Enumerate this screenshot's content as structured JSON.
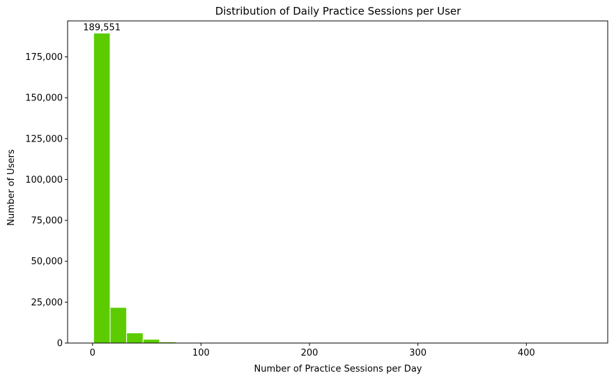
{
  "chart_data": {
    "type": "bar",
    "title": "Distribution of Daily Practice Sessions per User",
    "xlabel": "Number of Practice Sessions per Day",
    "ylabel": "Number of Users",
    "xlim": [
      -23,
      475
    ],
    "ylim": [
      0,
      197000
    ],
    "x_ticks": [
      0,
      100,
      200,
      300,
      400
    ],
    "x_tick_labels": [
      "0",
      "100",
      "200",
      "300",
      "400"
    ],
    "y_ticks": [
      0,
      25000,
      50000,
      75000,
      100000,
      125000,
      150000,
      175000
    ],
    "y_tick_labels": [
      "0",
      "25,000",
      "50,000",
      "75,000",
      "100,000",
      "125,000",
      "150,000",
      "175,000"
    ],
    "bin_edges": [
      1,
      16.2,
      31.4,
      46.6,
      61.8,
      77,
      92.2,
      107.4,
      122.6,
      137.8,
      153,
      168.2,
      183.4,
      198.6,
      213.8,
      229,
      244.2,
      259.4,
      274.6,
      289.8,
      305,
      320.2,
      335.4,
      350.6,
      365.8,
      381,
      396.2,
      411.4,
      426.6,
      441.8,
      457
    ],
    "values": [
      189551,
      21800,
      6200,
      2300,
      700,
      250,
      100,
      50,
      30,
      20,
      10,
      10,
      5,
      5,
      3,
      3,
      2,
      2,
      1,
      1,
      1,
      1,
      1,
      1,
      1,
      1,
      1,
      1,
      1,
      1
    ],
    "annotations": [
      {
        "text": "189,551",
        "bin": 0
      }
    ],
    "bar_color": "#5ccc00",
    "edge_color": "#ffffff",
    "grid": false,
    "legend": "none"
  }
}
